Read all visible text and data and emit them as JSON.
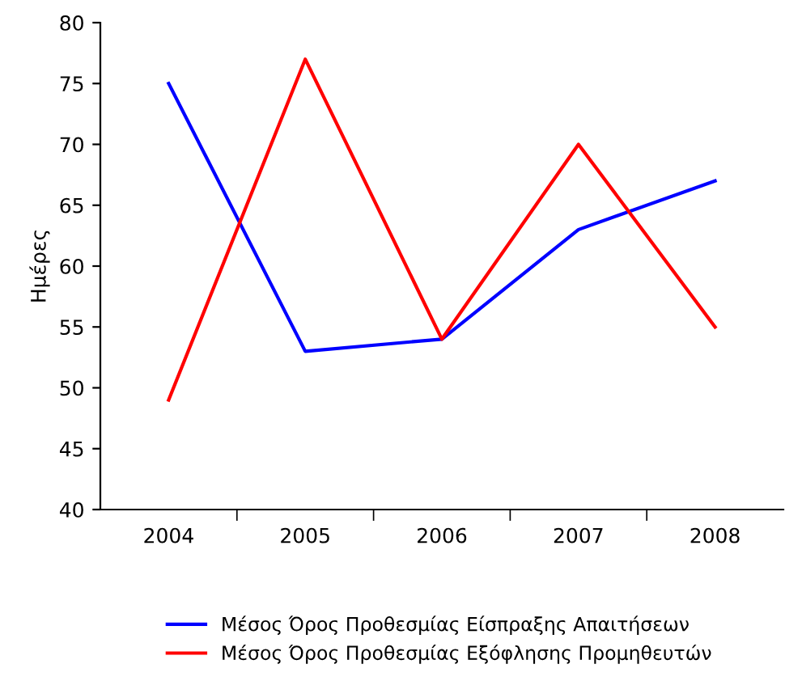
{
  "chart_data": {
    "type": "line",
    "ylabel": "Ημέρες",
    "categories": [
      "2004",
      "2005",
      "2006",
      "2007",
      "2008"
    ],
    "series": [
      {
        "name": "Μέσος Όρος Προθεσμίας Είσπραξης Απαιτήσεων",
        "color": "#0000ff",
        "values": [
          75,
          53,
          54,
          63,
          67
        ]
      },
      {
        "name": "Μέσος Όρος Προθεσμίας Εξόφλησης Προμηθευτών",
        "color": "#ff0000",
        "values": [
          49,
          77,
          54,
          70,
          55
        ]
      }
    ],
    "ylim": [
      40,
      80
    ],
    "yticks": [
      40,
      45,
      50,
      55,
      60,
      65,
      70,
      75,
      80
    ],
    "grid": false,
    "legend": "bottom",
    "marker": "none",
    "line_style": "solid"
  }
}
